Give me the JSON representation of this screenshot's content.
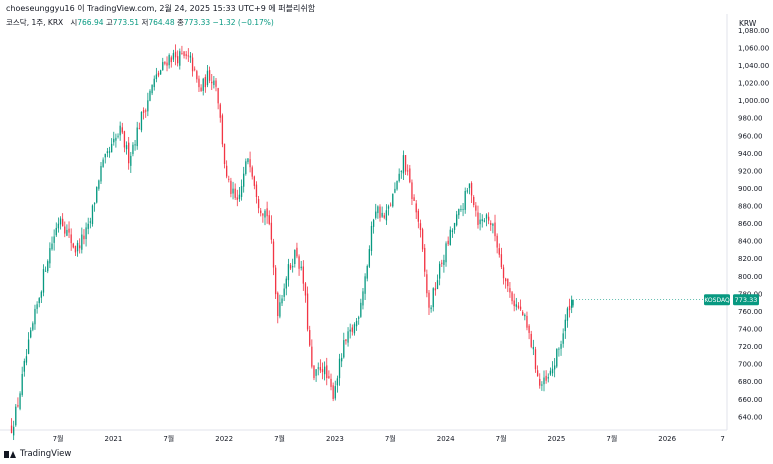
{
  "header": {
    "attribution": "choeseunggyu16 이 TradingView.com, 2월 24, 2025 15:33 UTC+9 에 퍼블리쉬함"
  },
  "legend": {
    "symbol_label": "코스닥, 1주, KRX",
    "open_label": "시",
    "open_value": "766.94",
    "high_label": "고",
    "high_value": "773.51",
    "low_label": "저",
    "low_value": "764.48",
    "close_label": "종",
    "close_value": "773.33",
    "change_value": "−1.32 (−0.17%)"
  },
  "currency_label": "KRW",
  "last_price_badge": {
    "symbol": "KOSDAQ",
    "price": "773.33"
  },
  "footer": {
    "brand": "TradingView"
  },
  "colors": {
    "up": "#089981",
    "down": "#f23645",
    "text": "#131722",
    "grid": "#f0f3fa",
    "badge": "#089981"
  },
  "chart_data": {
    "type": "candlestick",
    "interval": "1 week",
    "ylim": [
      625,
      1085
    ],
    "y_ticks": [
      "1,080.00",
      "1,060.00",
      "1,040.00",
      "1,020.00",
      "1,000.00",
      "980.00",
      "960.00",
      "940.00",
      "920.00",
      "900.00",
      "880.00",
      "860.00",
      "840.00",
      "820.00",
      "800.00",
      "780.00",
      "760.00",
      "740.00",
      "720.00",
      "700.00",
      "680.00",
      "660.00",
      "640.00"
    ],
    "x_ticks": [
      {
        "t": 2020.5,
        "label": "7월"
      },
      {
        "t": 2021.0,
        "label": "2021"
      },
      {
        "t": 2021.5,
        "label": "7월"
      },
      {
        "t": 2022.0,
        "label": "2022"
      },
      {
        "t": 2022.5,
        "label": "7월"
      },
      {
        "t": 2023.0,
        "label": "2023"
      },
      {
        "t": 2023.5,
        "label": "7월"
      },
      {
        "t": 2024.0,
        "label": "2024"
      },
      {
        "t": 2024.5,
        "label": "7월"
      },
      {
        "t": 2025.0,
        "label": "2025"
      },
      {
        "t": 2025.5,
        "label": "7월"
      },
      {
        "t": 2026.0,
        "label": "2026"
      },
      {
        "t": 2026.5,
        "label": "7"
      }
    ],
    "x_range": [
      2020.03,
      2026.54
    ],
    "series_start": 2020.08,
    "last_candle": {
      "open": 766.94,
      "high": 773.51,
      "low": 764.48,
      "close": 773.33
    },
    "close_path": [
      {
        "t": 2020.08,
        "v": 628
      },
      {
        "t": 2020.13,
        "v": 650
      },
      {
        "t": 2020.2,
        "v": 700
      },
      {
        "t": 2020.3,
        "v": 760
      },
      {
        "t": 2020.4,
        "v": 820
      },
      {
        "t": 2020.52,
        "v": 870
      },
      {
        "t": 2020.58,
        "v": 850
      },
      {
        "t": 2020.66,
        "v": 830
      },
      {
        "t": 2020.78,
        "v": 855
      },
      {
        "t": 2020.88,
        "v": 920
      },
      {
        "t": 2020.96,
        "v": 940
      },
      {
        "t": 2021.06,
        "v": 965
      },
      {
        "t": 2021.14,
        "v": 935
      },
      {
        "t": 2021.25,
        "v": 980
      },
      {
        "t": 2021.36,
        "v": 1020
      },
      {
        "t": 2021.5,
        "v": 1050
      },
      {
        "t": 2021.6,
        "v": 1050
      },
      {
        "t": 2021.7,
        "v": 1045
      },
      {
        "t": 2021.78,
        "v": 1010
      },
      {
        "t": 2021.86,
        "v": 1030
      },
      {
        "t": 2021.93,
        "v": 1020
      },
      {
        "t": 2022.02,
        "v": 910
      },
      {
        "t": 2022.12,
        "v": 880
      },
      {
        "t": 2022.22,
        "v": 940
      },
      {
        "t": 2022.32,
        "v": 880
      },
      {
        "t": 2022.4,
        "v": 870
      },
      {
        "t": 2022.48,
        "v": 760
      },
      {
        "t": 2022.56,
        "v": 800
      },
      {
        "t": 2022.65,
        "v": 830
      },
      {
        "t": 2022.72,
        "v": 790
      },
      {
        "t": 2022.8,
        "v": 680
      },
      {
        "t": 2022.88,
        "v": 700
      },
      {
        "t": 2022.98,
        "v": 665
      },
      {
        "t": 2023.08,
        "v": 720
      },
      {
        "t": 2023.2,
        "v": 750
      },
      {
        "t": 2023.3,
        "v": 820
      },
      {
        "t": 2023.36,
        "v": 880
      },
      {
        "t": 2023.45,
        "v": 865
      },
      {
        "t": 2023.58,
        "v": 910
      },
      {
        "t": 2023.62,
        "v": 935
      },
      {
        "t": 2023.68,
        "v": 900
      },
      {
        "t": 2023.76,
        "v": 860
      },
      {
        "t": 2023.85,
        "v": 760
      },
      {
        "t": 2023.95,
        "v": 810
      },
      {
        "t": 2024.05,
        "v": 850
      },
      {
        "t": 2024.15,
        "v": 880
      },
      {
        "t": 2024.22,
        "v": 905
      },
      {
        "t": 2024.3,
        "v": 860
      },
      {
        "t": 2024.38,
        "v": 870
      },
      {
        "t": 2024.45,
        "v": 845
      },
      {
        "t": 2024.55,
        "v": 790
      },
      {
        "t": 2024.62,
        "v": 770
      },
      {
        "t": 2024.7,
        "v": 755
      },
      {
        "t": 2024.78,
        "v": 720
      },
      {
        "t": 2024.85,
        "v": 675
      },
      {
        "t": 2024.92,
        "v": 680
      },
      {
        "t": 2024.98,
        "v": 700
      },
      {
        "t": 2025.05,
        "v": 730
      },
      {
        "t": 2025.12,
        "v": 770
      },
      {
        "t": 2025.15,
        "v": 773.33
      }
    ]
  }
}
